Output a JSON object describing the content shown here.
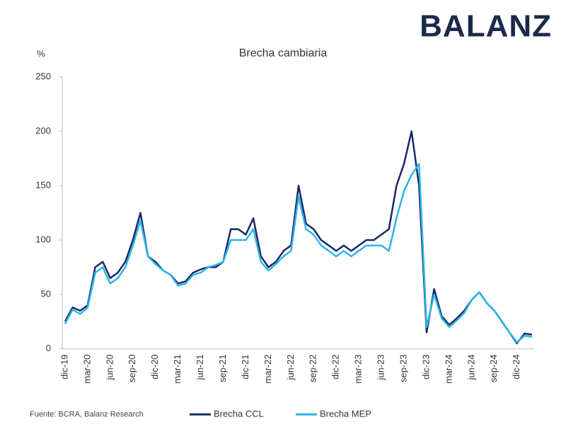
{
  "brand": "BALANZ",
  "source": "Fuente: BCRA, Balanz Research",
  "chart_data": {
    "type": "line",
    "title": "Brecha cambiaria",
    "y_unit": "%",
    "categories": [
      "dic-19",
      null,
      null,
      "mar-20",
      null,
      null,
      "jun-20",
      null,
      null,
      "sep-20",
      null,
      null,
      "dic-20",
      null,
      null,
      "mar-21",
      null,
      null,
      "jun-21",
      null,
      null,
      "sep-21",
      null,
      null,
      "dic-21",
      null,
      null,
      "mar-22",
      null,
      null,
      "jun-22",
      null,
      null,
      "sep-22",
      null,
      null,
      "dic-22",
      null,
      null,
      "mar-23",
      null,
      null,
      "jun-23",
      null,
      null,
      "sep-23",
      null,
      null,
      "dic-23",
      null,
      null,
      "mar-24",
      null,
      null,
      "jun-24",
      null,
      null,
      "sep-24",
      null,
      null,
      "dic-24",
      null,
      null
    ],
    "series": [
      {
        "name": "Brecha CCL",
        "color": "#1b2868",
        "values": [
          25,
          38,
          35,
          40,
          75,
          80,
          65,
          70,
          80,
          100,
          125,
          85,
          80,
          72,
          68,
          60,
          62,
          70,
          73,
          75,
          75,
          80,
          110,
          110,
          105,
          120,
          85,
          75,
          80,
          90,
          95,
          150,
          115,
          110,
          100,
          95,
          90,
          95,
          90,
          95,
          100,
          100,
          105,
          110,
          150,
          170,
          200,
          150,
          15,
          55,
          30,
          22,
          28,
          35,
          45,
          52,
          42,
          35,
          25,
          15,
          5,
          14,
          13
        ]
      },
      {
        "name": "Brecha MEP",
        "color": "#2bb5e8",
        "values": [
          23,
          36,
          32,
          38,
          70,
          75,
          60,
          65,
          75,
          95,
          118,
          85,
          78,
          72,
          68,
          58,
          60,
          68,
          70,
          75,
          77,
          80,
          100,
          100,
          100,
          110,
          80,
          72,
          78,
          85,
          90,
          140,
          110,
          105,
          95,
          90,
          85,
          90,
          85,
          90,
          95,
          95,
          95,
          90,
          120,
          145,
          160,
          170,
          20,
          50,
          28,
          20,
          26,
          33,
          45,
          52,
          42,
          35,
          25,
          15,
          6,
          12,
          11
        ]
      }
    ],
    "ylim": [
      0,
      250
    ],
    "yticks": [
      0,
      50,
      100,
      150,
      200,
      250
    ],
    "grid": false,
    "legend": "bottom"
  }
}
